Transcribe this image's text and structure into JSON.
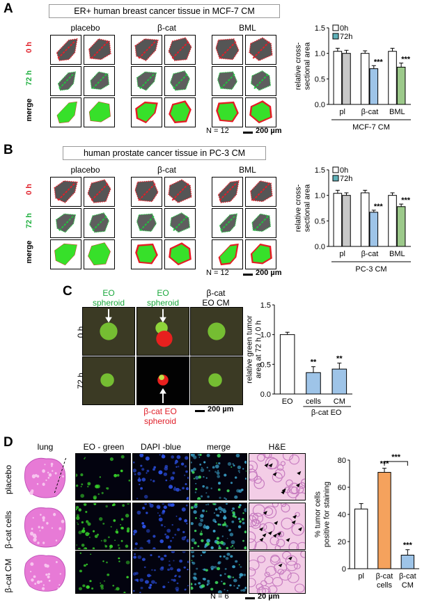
{
  "panelA": {
    "label": "A",
    "title": "ER+ human breast cancer tissue in MCF-7 CM",
    "columns": [
      "placebo",
      "β-cat",
      "BML"
    ],
    "rows": [
      "0 h",
      "72 h",
      "merge"
    ],
    "n_label": "N = 12",
    "scale": "200 µm"
  },
  "panelB": {
    "label": "B",
    "title": "human prostate cancer tissue in PC-3 CM",
    "columns": [
      "placebo",
      "β-cat",
      "BML"
    ],
    "rows": [
      "0 h",
      "72 h",
      "merge"
    ],
    "n_label": "N = 12",
    "scale": "200 µm"
  },
  "panelC": {
    "label": "C",
    "col_labels": [
      "EO\nspheroid",
      "EO\nspheroid",
      "β-cat\nEO CM"
    ],
    "rows": [
      "0 h",
      "72 h"
    ],
    "bottom_label": "β-cat EO\nspheroid",
    "scale": "200 µm"
  },
  "panelD": {
    "label": "D",
    "columns": [
      "lung",
      "EO - green",
      "DAPI -blue",
      "merge",
      "H&E"
    ],
    "rows": [
      "placebo",
      "β-cat cells",
      "β-cat CM"
    ],
    "n_label": "N = 6",
    "scale": "20 µm"
  },
  "chart_data": [
    {
      "type": "bar",
      "panel": "A",
      "categories": [
        "pl",
        "β-cat",
        "BML"
      ],
      "group_label": "MCF-7 CM",
      "series": [
        {
          "name": "0h",
          "values": [
            1.04,
            1.0,
            1.04
          ],
          "errors": [
            0.06,
            0.05,
            0.06
          ],
          "color": "#ffffff"
        },
        {
          "name": "72h",
          "values": [
            1.0,
            0.7,
            0.73
          ],
          "errors": [
            0.06,
            0.06,
            0.08
          ],
          "colors": [
            "#c8c8c8",
            "#9ec4e8",
            "#9cc98a"
          ]
        }
      ],
      "significance": [
        "",
        "***",
        "***"
      ],
      "ylabel": "relative cross-\nsectional area",
      "yticks": [
        "0.0",
        "0.5",
        "1.0",
        "1.5"
      ],
      "ylim": [
        0,
        1.5
      ]
    },
    {
      "type": "bar",
      "panel": "B",
      "categories": [
        "pl",
        "β-cat",
        "BML"
      ],
      "group_label": "PC-3 CM",
      "series": [
        {
          "name": "0h",
          "values": [
            1.04,
            1.05,
            1.0
          ],
          "errors": [
            0.06,
            0.05,
            0.05
          ],
          "color": "#ffffff"
        },
        {
          "name": "72h",
          "values": [
            1.0,
            0.67,
            0.78
          ],
          "errors": [
            0.05,
            0.04,
            0.05
          ],
          "colors": [
            "#c8c8c8",
            "#9ec4e8",
            "#9cc98a"
          ]
        }
      ],
      "significance": [
        "",
        "***",
        "***"
      ],
      "ylabel": "relative cross-\nsectional area",
      "yticks": [
        "0.0",
        "0.5",
        "1.0",
        "1.5"
      ],
      "ylim": [
        0,
        1.5
      ]
    },
    {
      "type": "bar",
      "panel": "C",
      "categories": [
        "EO",
        "cells",
        "CM"
      ],
      "sub_label": "β-cat EO",
      "values": [
        1.0,
        0.36,
        0.42
      ],
      "errors": [
        0.04,
        0.1,
        0.1
      ],
      "colors": [
        "#ffffff",
        "#9ec4e8",
        "#9ec4e8"
      ],
      "significance": [
        "",
        "**",
        "**"
      ],
      "ylabel": "relative green tumor\narea at 72 h / 0 h",
      "yticks": [
        "0.0",
        "0.5",
        "1.0",
        "1.5"
      ],
      "ylim": [
        0,
        1.5
      ]
    },
    {
      "type": "bar",
      "panel": "D",
      "categories": [
        "pl",
        "β-cat\ncells",
        "β-cat\nCM"
      ],
      "values": [
        44,
        71,
        10
      ],
      "errors": [
        4,
        3,
        4
      ],
      "colors": [
        "#ffffff",
        "#f5a25d",
        "#9ec4e8"
      ],
      "significance": [
        "",
        "***",
        "***"
      ],
      "bracket": "***",
      "ylabel": "% tumor cells\npositive for staining",
      "yticks": [
        "0",
        "20",
        "40",
        "60",
        "80"
      ],
      "ylim": [
        0,
        80
      ]
    }
  ]
}
